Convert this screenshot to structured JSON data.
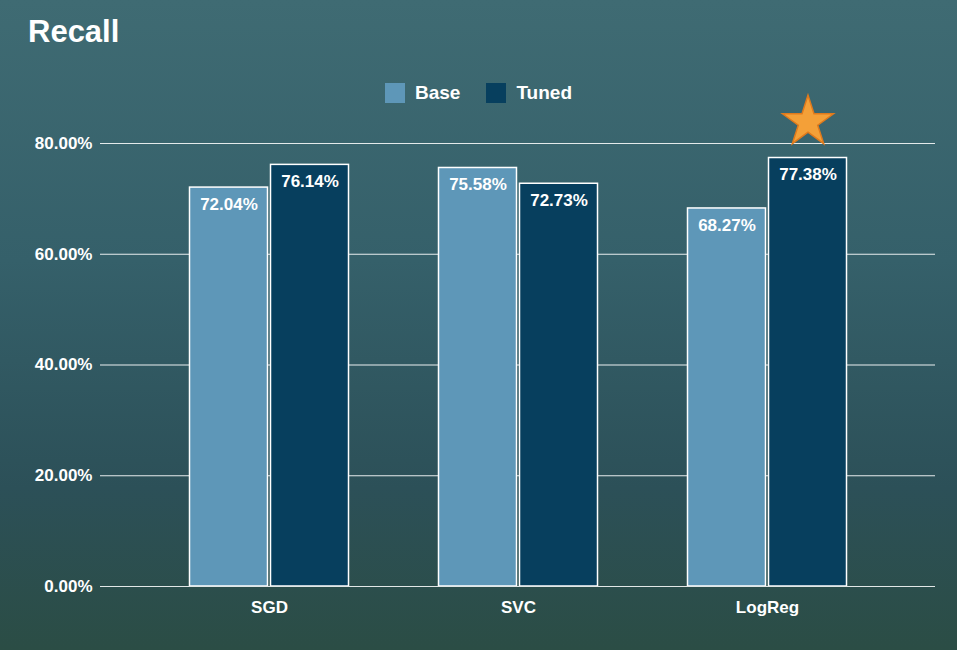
{
  "chart_data": {
    "type": "bar",
    "title": "Recall",
    "categories": [
      "SGD",
      "SVC",
      "LogReg"
    ],
    "series": [
      {
        "name": "Base",
        "color": "#5e97b8",
        "values": [
          72.04,
          75.58,
          68.27
        ],
        "value_labels": [
          "72.04%",
          "75.58%",
          "68.27%"
        ]
      },
      {
        "name": "Tuned",
        "color": "#073f5e",
        "values": [
          76.14,
          72.73,
          77.38
        ],
        "value_labels": [
          "76.14%",
          "72.73%",
          "77.38%"
        ]
      }
    ],
    "ylim": [
      0,
      80
    ],
    "yticks": [
      {
        "value": 0,
        "label": "0.00%"
      },
      {
        "value": 20,
        "label": "20.00%"
      },
      {
        "value": 40,
        "label": "40.00%"
      },
      {
        "value": 60,
        "label": "60.00%"
      },
      {
        "value": 80,
        "label": "80.00%"
      }
    ],
    "grid": true,
    "legend": "top",
    "data_labels": true
  }
}
